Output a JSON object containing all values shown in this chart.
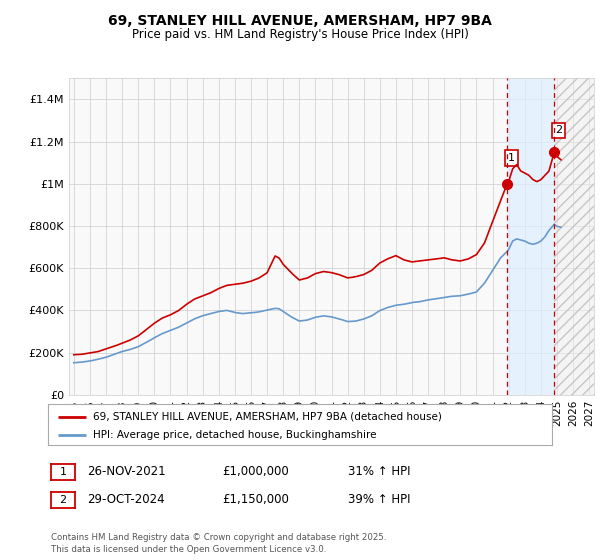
{
  "title": "69, STANLEY HILL AVENUE, AMERSHAM, HP7 9BA",
  "subtitle": "Price paid vs. HM Land Registry's House Price Index (HPI)",
  "red_label": "69, STANLEY HILL AVENUE, AMERSHAM, HP7 9BA (detached house)",
  "blue_label": "HPI: Average price, detached house, Buckinghamshire",
  "annotation1_label": "1",
  "annotation1_date": "26-NOV-2021",
  "annotation1_price": "£1,000,000",
  "annotation1_hpi": "31% ↑ HPI",
  "annotation2_label": "2",
  "annotation2_date": "29-OCT-2024",
  "annotation2_price": "£1,150,000",
  "annotation2_hpi": "39% ↑ HPI",
  "footer": "Contains HM Land Registry data © Crown copyright and database right 2025.\nThis data is licensed under the Open Government Licence v3.0.",
  "ylim": [
    0,
    1500000
  ],
  "yticks": [
    0,
    200000,
    400000,
    600000,
    800000,
    1000000,
    1200000,
    1400000
  ],
  "ytick_labels": [
    "£0",
    "£200K",
    "£400K",
    "£600K",
    "£800K",
    "£1M",
    "£1.2M",
    "£1.4M"
  ],
  "red_color": "#cc0000",
  "blue_color": "#6699cc",
  "background_color": "#ffffff",
  "grid_color": "#cccccc",
  "marker1_x_year": 2021.91,
  "marker1_y": 1000000,
  "marker2_x_year": 2024.83,
  "marker2_y": 1150000,
  "xlim_start": 1994.7,
  "xlim_end": 2027.3,
  "hatch_end": 2027.3,
  "chart_bg": "#f9f9f9"
}
